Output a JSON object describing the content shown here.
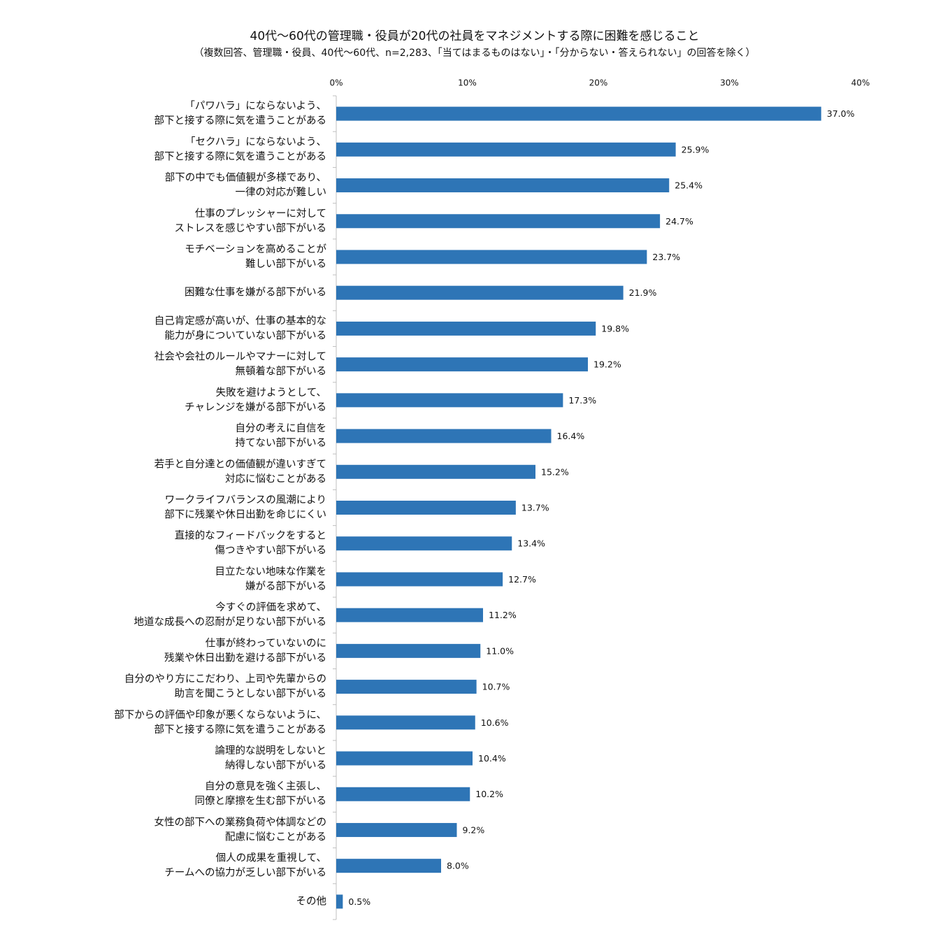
{
  "chart_data": {
    "type": "hbar",
    "title": "40代～60代の管理職・役員が20代の社員をマネジメントする際に困難を感じること",
    "subtitle": "（複数回答、管理職・役員、40代～60代、n=2,283、「当てはまるものはない」・「分からない・答えられない」の回答を除く）",
    "categories": [
      [
        "「パワハラ」にならないよう、",
        "部下と接する際に気を遣うことがある"
      ],
      [
        "「セクハラ」にならないよう、",
        "部下と接する際に気を遣うことがある"
      ],
      [
        "部下の中でも価値観が多様であり、",
        "一律の対応が難しい"
      ],
      [
        "仕事のプレッシャーに対して",
        "ストレスを感じやすい部下がいる"
      ],
      [
        "モチベーションを高めることが",
        "難しい部下がいる"
      ],
      [
        "困難な仕事を嫌がる部下がいる"
      ],
      [
        "自己肯定感が高いが、仕事の基本的な",
        "能力が身についていない部下がいる"
      ],
      [
        "社会や会社のルールやマナーに対して",
        "無頓着な部下がいる"
      ],
      [
        "失敗を避けようとして、",
        "チャレンジを嫌がる部下がいる"
      ],
      [
        "自分の考えに自信を",
        "持てない部下がいる"
      ],
      [
        "若手と自分達との価値観が違いすぎて",
        "対応に悩むことがある"
      ],
      [
        "ワークライフバランスの風潮により",
        "部下に残業や休日出勤を命じにくい"
      ],
      [
        "直接的なフィードバックをすると",
        "傷つきやすい部下がいる"
      ],
      [
        "目立たない地味な作業を",
        "嫌がる部下がいる"
      ],
      [
        "今すぐの評価を求めて、",
        "地道な成長への忍耐が足りない部下がいる"
      ],
      [
        "仕事が終わっていないのに",
        "残業や休日出勤を避ける部下がいる"
      ],
      [
        "自分のやり方にこだわり、上司や先輩からの",
        "助言を聞こうとしない部下がいる"
      ],
      [
        "部下からの評価や印象が悪くならないように、",
        "部下と接する際に気を遣うことがある"
      ],
      [
        "論理的な説明をしないと",
        "納得しない部下がいる"
      ],
      [
        "自分の意見を強く主張し、",
        "同僚と摩擦を生む部下がいる"
      ],
      [
        "女性の部下への業務負荷や体調などの",
        "配慮に悩むことがある"
      ],
      [
        "個人の成果を重視して、",
        "チームへの協力が乏しい部下がいる"
      ],
      [
        "その他"
      ]
    ],
    "values": [
      37.0,
      25.9,
      25.4,
      24.7,
      23.7,
      21.9,
      19.8,
      19.2,
      17.3,
      16.4,
      15.2,
      13.7,
      13.4,
      12.7,
      11.2,
      11.0,
      10.7,
      10.6,
      10.4,
      10.2,
      9.2,
      8.0,
      0.5
    ],
    "value_labels": [
      "37.0%",
      "25.9%",
      "25.4%",
      "24.7%",
      "23.7%",
      "21.9%",
      "19.8%",
      "19.2%",
      "17.3%",
      "16.4%",
      "15.2%",
      "13.7%",
      "13.4%",
      "12.7%",
      "11.2%",
      "11.0%",
      "10.7%",
      "10.6%",
      "10.4%",
      "10.2%",
      "9.2%",
      "8.0%",
      "0.5%"
    ],
    "color": "#2e75b6",
    "xlim": [
      0,
      40
    ],
    "xticks": [
      {
        "value": 0,
        "label": "0%"
      },
      {
        "value": 10,
        "label": "10%"
      },
      {
        "value": 20,
        "label": "20%"
      },
      {
        "value": 30,
        "label": "30%"
      },
      {
        "value": 40,
        "label": "40%"
      }
    ]
  }
}
